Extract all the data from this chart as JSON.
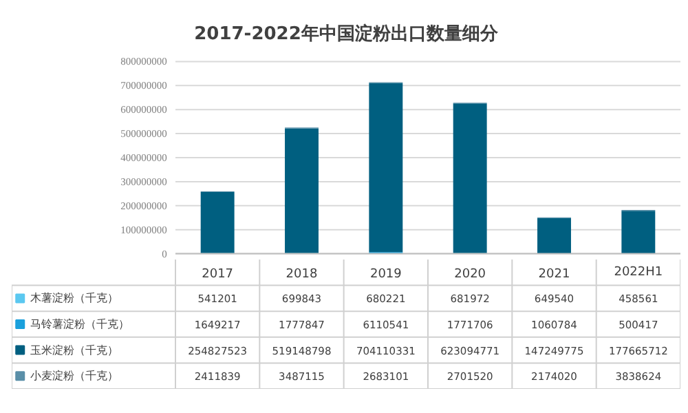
{
  "chart_data": {
    "type": "bar",
    "title": "2017-2022年中国淀粉出口数量细分",
    "categories": [
      "2017",
      "2018",
      "2019",
      "2020",
      "2021",
      "2022H1"
    ],
    "stacked": true,
    "data_labels": true,
    "legend": "bottom",
    "grid": "y",
    "ylim": [
      0,
      800000000
    ],
    "yticks": [
      0,
      100000000,
      200000000,
      300000000,
      400000000,
      500000000,
      600000000,
      700000000,
      800000000
    ],
    "series": [
      {
        "name": "木薯淀粉（千克）",
        "color": "#5bc8f0",
        "values": [
          541201,
          699843,
          680221,
          681972,
          649540,
          458561
        ]
      },
      {
        "name": "马铃薯淀粉（千克）",
        "color": "#1aa0dc",
        "values": [
          1649217,
          1777847,
          6110541,
          1771706,
          1060784,
          500417
        ]
      },
      {
        "name": "玉米淀粉（千克）",
        "color": "#005f80",
        "values": [
          254827523,
          519148798,
          704110331,
          623094771,
          147249775,
          177665712
        ]
      },
      {
        "name": "小麦淀粉（千克）",
        "color": "#5a8fa8",
        "values": [
          2411839,
          3487115,
          2683101,
          2701520,
          2174020,
          3838624
        ]
      }
    ]
  }
}
